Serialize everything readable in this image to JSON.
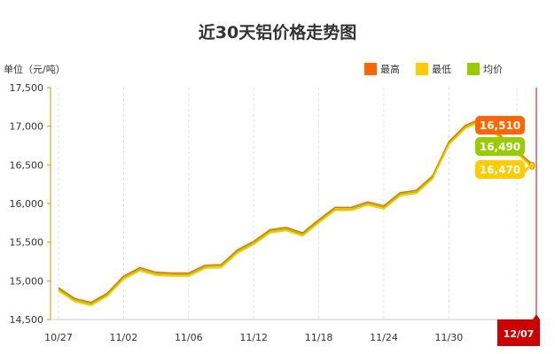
{
  "chart_data": {
    "type": "line",
    "title": "近30天铝价格走势图",
    "ylabel": "单位（元/吨）",
    "ylim": [
      14500,
      17500
    ],
    "yticks": [
      "14,500",
      "15,000",
      "15,500",
      "16,000",
      "16,500",
      "17,000",
      "17,500"
    ],
    "xticks": [
      "10/27",
      "11/02",
      "11/06",
      "11/12",
      "11/18",
      "11/24",
      "11/30"
    ],
    "current_date_label": "12/07",
    "legend": [
      {
        "name": "最高",
        "color": "#ff6600"
      },
      {
        "name": "最低",
        "color": "#ffcc00"
      },
      {
        "name": "均价",
        "color": "#99cc00"
      }
    ],
    "end_labels": {
      "high": "16,510",
      "avg": "16,490",
      "low": "16,470"
    },
    "series": [
      {
        "name": "最高",
        "color": "#ff6600",
        "values": [
          14910,
          14770,
          14720,
          14840,
          15060,
          15170,
          15110,
          15100,
          15100,
          15200,
          15210,
          15400,
          15510,
          15660,
          15690,
          15620,
          15790,
          15950,
          15950,
          16020,
          15970,
          16140,
          16170,
          16360,
          16800,
          17010,
          17100,
          16510
        ]
      },
      {
        "name": "均价",
        "color": "#99cc00",
        "values": [
          14890,
          14750,
          14700,
          14820,
          15040,
          15150,
          15090,
          15080,
          15080,
          15180,
          15190,
          15380,
          15490,
          15640,
          15670,
          15600,
          15770,
          15930,
          15930,
          16000,
          15950,
          16120,
          16150,
          16340,
          16780,
          16990,
          17080,
          16490
        ]
      },
      {
        "name": "最低",
        "color": "#ffcc00",
        "values": [
          14870,
          14730,
          14680,
          14800,
          15020,
          15130,
          15070,
          15060,
          15060,
          15160,
          15170,
          15360,
          15470,
          15620,
          15650,
          15580,
          15750,
          15910,
          15910,
          15980,
          15930,
          16100,
          16130,
          16320,
          16760,
          16970,
          17060,
          16470
        ]
      }
    ]
  }
}
